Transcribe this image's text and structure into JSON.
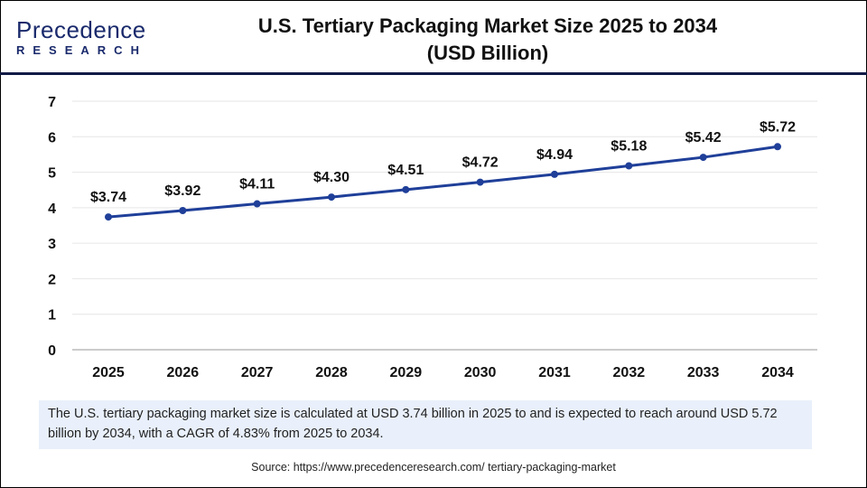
{
  "logo": {
    "main": "Precedence",
    "sub": "RESEARCH"
  },
  "title_line1": "U.S. Tertiary Packaging Market Size 2025 to 2034",
  "title_line2": "(USD Billion)",
  "chart_data": {
    "type": "line",
    "title": "U.S. Tertiary Packaging Market Size 2025 to 2034 (USD Billion)",
    "categories": [
      "2025",
      "2026",
      "2027",
      "2028",
      "2029",
      "2030",
      "2031",
      "2032",
      "2033",
      "2034"
    ],
    "values": [
      3.74,
      3.92,
      4.11,
      4.3,
      4.51,
      4.72,
      4.94,
      5.18,
      5.42,
      5.72
    ],
    "data_labels": [
      "$3.74",
      "$3.92",
      "$4.11",
      "$4.30",
      "$4.51",
      "$4.72",
      "$4.94",
      "$5.18",
      "$5.42",
      "$5.72"
    ],
    "yticks": [
      0,
      1,
      2,
      3,
      4,
      5,
      6,
      7
    ],
    "ylim": [
      0,
      7
    ],
    "grid": true,
    "line_color": "#1f3f99"
  },
  "note": "The U.S. tertiary packaging market size is calculated at USD 3.74 billion in 2025 to and is expected to reach around USD 5.72 billion by 2034, with a CAGR of 4.83% from 2025 to 2034.",
  "source": "Source: https://www.precedenceresearch.com/ tertiary-packaging-market"
}
